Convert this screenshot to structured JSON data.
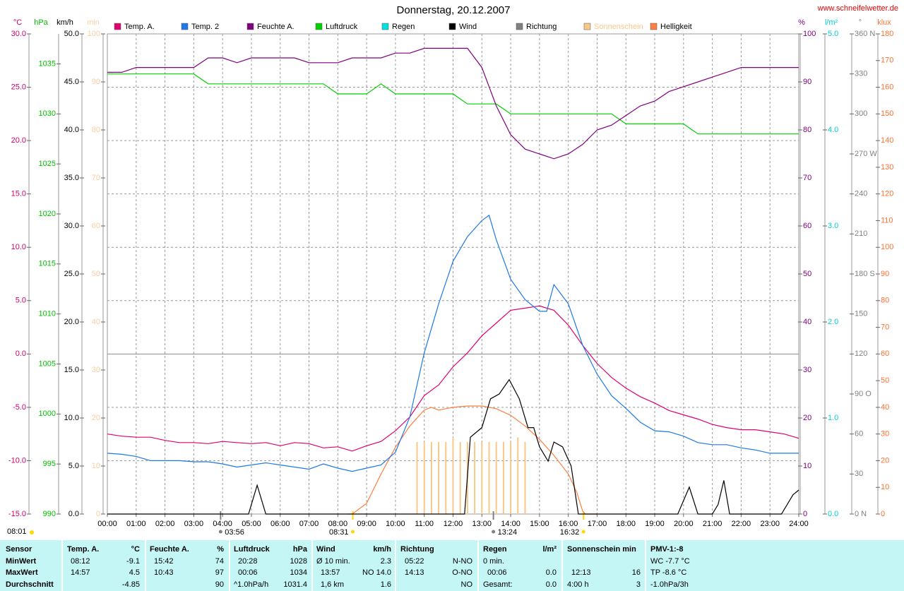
{
  "chart_data": {
    "type": "line",
    "title": "Donnerstag, 20.12.2007",
    "source": "www.schneifelwetter.de",
    "xlim": [
      0,
      24
    ],
    "xticks": [
      {
        "value": 0,
        "label": "00:00"
      },
      {
        "value": 1,
        "label": "01:00"
      },
      {
        "value": 2,
        "label": "02:00"
      },
      {
        "value": 3,
        "label": "03:00"
      },
      {
        "value": 4,
        "label": "04:00"
      },
      {
        "value": 5,
        "label": "05:00"
      },
      {
        "value": 6,
        "label": "06:00"
      },
      {
        "value": 7,
        "label": "07:00"
      },
      {
        "value": 8,
        "label": "08:00"
      },
      {
        "value": 9,
        "label": "09:00"
      },
      {
        "value": 10,
        "label": "10:00"
      },
      {
        "value": 11,
        "label": "11:00"
      },
      {
        "value": 12,
        "label": "12:00"
      },
      {
        "value": 13,
        "label": "13:00"
      },
      {
        "value": 14,
        "label": "14:00"
      },
      {
        "value": 15,
        "label": "15:00"
      },
      {
        "value": 16,
        "label": "16:00"
      },
      {
        "value": 17,
        "label": "17:00"
      },
      {
        "value": 18,
        "label": "18:00"
      },
      {
        "value": 19,
        "label": "19:00"
      },
      {
        "value": 20,
        "label": "20:00"
      },
      {
        "value": 21,
        "label": "21:00"
      },
      {
        "value": 22,
        "label": "22:00"
      },
      {
        "value": 23,
        "label": "23:00"
      },
      {
        "value": 24,
        "label": "24:00"
      }
    ],
    "grid": true,
    "axes": [
      {
        "label": "°C",
        "side": "left",
        "color": "#d0006f",
        "ylim": [
          -15,
          30
        ],
        "yticks": [
          {
            "value": 30,
            "label": "30.0"
          },
          {
            "value": 25,
            "label": "25.0"
          },
          {
            "value": 20,
            "label": "20.0"
          },
          {
            "value": 15,
            "label": "15.0"
          },
          {
            "value": 10,
            "label": "10.0"
          },
          {
            "value": 5,
            "label": "5.0"
          },
          {
            "value": 0,
            "label": "0.0"
          },
          {
            "value": -5,
            "label": "-5.0"
          },
          {
            "value": -10,
            "label": "-10.0"
          },
          {
            "value": -15,
            "label": "-15.0"
          }
        ]
      },
      {
        "label": "hPa",
        "side": "left",
        "color": "#00c000",
        "ylim": [
          990,
          1038
        ],
        "yticks": [
          990,
          995,
          1000,
          1005,
          1010,
          1015,
          1020,
          1025,
          1030,
          1035
        ]
      },
      {
        "label": "km/h",
        "side": "left",
        "color": "#000000",
        "ylim": [
          0,
          50
        ],
        "yticks": [
          {
            "value": 0,
            "label": "0.0"
          },
          {
            "value": 5,
            "label": "5.0"
          },
          {
            "value": 10,
            "label": "10.0"
          },
          {
            "value": 15,
            "label": "15.0"
          },
          {
            "value": 20,
            "label": "20.0"
          },
          {
            "value": 25,
            "label": "25.0"
          },
          {
            "value": 30,
            "label": "30.0"
          },
          {
            "value": 35,
            "label": "35.0"
          },
          {
            "value": 40,
            "label": "40.0"
          },
          {
            "value": 45,
            "label": "45.0"
          },
          {
            "value": 50,
            "label": "50.0"
          }
        ]
      },
      {
        "label": "min",
        "side": "left",
        "color": "#f8d0a0",
        "ylim": [
          0,
          100
        ],
        "yticks": [
          0,
          10,
          20,
          30,
          40,
          50,
          60,
          70,
          80,
          90,
          100
        ]
      },
      {
        "label": "%",
        "side": "right",
        "color": "#800080",
        "ylim": [
          0,
          100
        ],
        "yticks": [
          0,
          10,
          20,
          30,
          40,
          50,
          60,
          70,
          80,
          90,
          100
        ]
      },
      {
        "label": "l/m²",
        "side": "right",
        "color": "#00d0d0",
        "ylim": [
          0,
          5
        ],
        "yticks": [
          {
            "value": 0,
            "label": "0.0"
          },
          {
            "value": 1,
            "label": "1.0"
          },
          {
            "value": 2,
            "label": "2.0"
          },
          {
            "value": 3,
            "label": "3.0"
          },
          {
            "value": 4,
            "label": "4.0"
          },
          {
            "value": 5,
            "label": "5.0"
          }
        ]
      },
      {
        "label": "°",
        "side": "right",
        "color": "#808080",
        "ylim": [
          0,
          360
        ],
        "yticks": [
          {
            "value": 0,
            "label": "0 N"
          },
          30,
          60,
          {
            "value": 90,
            "label": "90 O"
          },
          120,
          150,
          {
            "value": 180,
            "label": "180 S"
          },
          210,
          240,
          {
            "value": 270,
            "label": "270 W"
          },
          300,
          330,
          {
            "value": 360,
            "label": "360 N"
          }
        ]
      },
      {
        "label": "klux",
        "side": "right",
        "color": "#ff7030",
        "ylim": [
          0,
          180
        ],
        "yticks": [
          0,
          10,
          20,
          30,
          40,
          50,
          60,
          70,
          80,
          90,
          100,
          110,
          120,
          130,
          140,
          150,
          160,
          170,
          180
        ]
      }
    ],
    "series": [
      {
        "name": "Temp. A.",
        "color": "#e0006f",
        "axis": "°C",
        "x": [
          0,
          0.5,
          1,
          1.5,
          2,
          2.5,
          3,
          3.5,
          4,
          4.5,
          5,
          5.5,
          6,
          6.5,
          7,
          7.5,
          8,
          8.5,
          9,
          9.5,
          10,
          10.5,
          11,
          11.5,
          12,
          12.5,
          13,
          13.5,
          14,
          14.5,
          15,
          15.5,
          16,
          16.5,
          17,
          17.5,
          18,
          18.5,
          19,
          19.5,
          20,
          20.5,
          21,
          21.5,
          22,
          22.5,
          23,
          23.5,
          24
        ],
        "values": [
          -7.5,
          -7.7,
          -7.8,
          -7.8,
          -8.1,
          -8.3,
          -8.3,
          -8.4,
          -8.2,
          -8.3,
          -8.4,
          -8.3,
          -8.6,
          -8.3,
          -8.4,
          -8.8,
          -8.7,
          -9.1,
          -8.6,
          -8.2,
          -7.2,
          -5.9,
          -3.9,
          -2.9,
          -1.2,
          0.1,
          1.7,
          2.9,
          4.1,
          4.3,
          4.5,
          4.1,
          2.7,
          0.8,
          -0.9,
          -2.2,
          -3.2,
          -4.0,
          -4.6,
          -5.3,
          -5.7,
          -6.1,
          -6.6,
          -6.9,
          -7.1,
          -7.1,
          -7.3,
          -7.5,
          -7.9
        ]
      },
      {
        "name": "Temp. 2",
        "color": "#1e78e6",
        "axis": "°C",
        "x": [
          0,
          0.5,
          1,
          1.5,
          2,
          2.5,
          3,
          3.5,
          4,
          4.5,
          5,
          5.5,
          6,
          6.5,
          7,
          7.5,
          8,
          8.5,
          9,
          9.5,
          10,
          10.5,
          11,
          11.5,
          12,
          12.5,
          13,
          13.25,
          13.5,
          14,
          14.5,
          15,
          15.25,
          15.5,
          16,
          16.5,
          17,
          17.5,
          18,
          18.5,
          19,
          19.5,
          20,
          20.5,
          21,
          21.5,
          22,
          22.5,
          23,
          23.5,
          24
        ],
        "values": [
          -9.3,
          -9.4,
          -9.6,
          -10.0,
          -10.0,
          -10.0,
          -10.1,
          -10.1,
          -10.3,
          -10.6,
          -10.4,
          -10.2,
          -10.4,
          -10.6,
          -10.8,
          -10.3,
          -10.7,
          -11.0,
          -10.7,
          -10.4,
          -9.2,
          -5.9,
          0.1,
          4.7,
          8.7,
          11.0,
          12.5,
          13.0,
          10.7,
          7.0,
          5.1,
          4.0,
          4.0,
          6.5,
          4.7,
          0.8,
          -1.9,
          -3.9,
          -5.1,
          -6.4,
          -7.2,
          -7.3,
          -7.7,
          -8.3,
          -8.5,
          -8.5,
          -8.8,
          -9.0,
          -9.3,
          -9.3,
          -9.3
        ]
      },
      {
        "name": "Feuchte A.",
        "color": "#800080",
        "axis": "%",
        "x": [
          0,
          0.5,
          1,
          1.5,
          2,
          2.5,
          3,
          3.5,
          4,
          4.5,
          5,
          5.5,
          6,
          6.5,
          7,
          7.5,
          8,
          8.5,
          9,
          9.5,
          10,
          10.5,
          11,
          11.5,
          12,
          12.5,
          13,
          13.5,
          14,
          14.5,
          15,
          15.5,
          16,
          16.5,
          17,
          17.5,
          18,
          18.5,
          19,
          19.5,
          20,
          20.5,
          21,
          21.5,
          22,
          22.5,
          23,
          23.5,
          24
        ],
        "values": [
          92,
          92,
          93,
          93,
          93,
          93,
          93,
          95,
          95,
          94,
          95,
          95,
          95,
          95,
          94,
          94,
          94,
          95,
          95,
          95,
          96,
          96,
          97,
          97,
          97,
          97,
          93,
          85,
          79,
          76,
          75,
          74,
          75,
          77,
          80,
          81,
          83,
          85,
          86,
          88,
          89,
          90,
          91,
          92,
          93,
          93,
          93,
          93,
          93
        ]
      },
      {
        "name": "Luftdruck",
        "color": "#00d000",
        "axis": "hPa",
        "x": [
          0,
          0.5,
          1,
          1.5,
          2,
          2.5,
          3,
          3.5,
          4,
          4.5,
          5,
          5.5,
          6,
          6.5,
          7,
          7.5,
          8,
          8.5,
          9,
          9.5,
          10,
          10.5,
          11,
          11.5,
          12,
          12.5,
          13,
          13.5,
          14,
          14.5,
          15,
          15.5,
          16,
          16.5,
          17,
          17.5,
          18,
          18.5,
          19,
          19.5,
          20,
          20.5,
          21,
          21.5,
          22,
          22.5,
          23,
          23.5,
          24
        ],
        "values": [
          1034,
          1034,
          1034,
          1034,
          1034,
          1034,
          1034,
          1033,
          1033,
          1033,
          1033,
          1033,
          1033,
          1033,
          1033,
          1033,
          1032,
          1032,
          1032,
          1033,
          1032,
          1032,
          1032,
          1032,
          1032,
          1031,
          1031,
          1031,
          1030,
          1030,
          1030,
          1030,
          1030,
          1030,
          1030,
          1030,
          1029,
          1029,
          1029,
          1029,
          1029,
          1028,
          1028,
          1028,
          1028,
          1028,
          1028,
          1028,
          1028
        ]
      },
      {
        "name": "Regen",
        "color": "#00e0e0",
        "axis": "l/m²"
      },
      {
        "name": "Wind",
        "color": "#000000",
        "axis": "km/h",
        "x": [
          0,
          4.9,
          5.2,
          5.5,
          12.4,
          12.6,
          13,
          13.3,
          13.6,
          13.95,
          14.3,
          14.6,
          14.8,
          15,
          15.3,
          15.5,
          15.8,
          16.1,
          16.35,
          16.6,
          19.8,
          20.2,
          20.5,
          20.8,
          21,
          21.2,
          21.4,
          21.6,
          23.4,
          23.8,
          24
        ],
        "values": [
          0,
          0,
          3.0,
          0,
          0,
          8.0,
          9.0,
          12.0,
          12.5,
          14.0,
          12.0,
          9.0,
          9.0,
          7.0,
          5.5,
          7.5,
          7.0,
          5.0,
          0,
          0,
          0,
          2.8,
          0,
          0,
          0,
          1.0,
          3.5,
          0,
          0,
          2.0,
          2.5
        ]
      },
      {
        "name": "Richtung",
        "color": "#808080",
        "axis": "°"
      },
      {
        "name": "Sonnenschein",
        "color": "#f8c888",
        "axis": "min",
        "type": "bar",
        "x": [
          10.75,
          11,
          11.25,
          11.5,
          11.75,
          12,
          12.25,
          12.5,
          12.75,
          13,
          13.25,
          13.5,
          13.75,
          14,
          14.25,
          14.5
        ],
        "values": [
          15,
          15,
          15,
          15,
          15,
          16,
          15,
          15,
          15,
          15,
          15,
          15,
          15,
          15,
          16,
          15
        ]
      },
      {
        "name": "Helligkeit",
        "color": "#ff7f3f",
        "axis": "klux",
        "x": [
          8.3,
          8.5,
          9,
          9.5,
          10,
          10.5,
          11,
          11.25,
          11.5,
          12,
          12.5,
          13,
          13.5,
          14,
          14.5,
          15,
          15.5,
          16,
          16.3,
          16.5,
          16.6,
          17
        ],
        "values": [
          0,
          0,
          4,
          15,
          25,
          33,
          39,
          40,
          39,
          40,
          40.5,
          40.5,
          39.5,
          37,
          33,
          28,
          22,
          15,
          8,
          1,
          0,
          0
        ]
      }
    ],
    "markers": [
      {
        "x": 3.93,
        "label": "03:56"
      },
      {
        "x": 8.52,
        "label": "08:31"
      },
      {
        "x": 13.4,
        "label": "13:24"
      },
      {
        "x": 16.53,
        "label": "16:32"
      }
    ],
    "footnote": "08:01"
  },
  "table": {
    "rows": [
      [
        "Sensor",
        "Temp. A.",
        "°C",
        "Feuchte A.",
        "%",
        "Luftdruck",
        "hPa",
        "Wind",
        "km/h",
        "Richtung",
        "Regen",
        "l/m²",
        "Sonnenschein min",
        "PMV-1:-8"
      ],
      [
        "MinWert",
        "08:12",
        "-9.1",
        "15:42",
        "74",
        "20:28",
        "1028",
        "Ø 10 min.",
        "2.3",
        "05:22",
        "N-NO",
        "0 min.",
        "WC -7.7 °C"
      ],
      [
        "MaxWert",
        "14:57",
        "4.5",
        "10:43",
        "97",
        "00:06",
        "1034",
        "13:57",
        "NO 14.0",
        "14:13",
        "O-NO",
        "00:06",
        "0.0",
        "12:13",
        "16",
        "TP -8.6 °C"
      ],
      [
        "Durchschnitt",
        "-4.85",
        "90",
        "^1.0hPa/h",
        "1031.4",
        "1,6 km",
        "1.6",
        "NO",
        "Gesamt:",
        "0.0",
        "4:00 h",
        "3",
        "-1.0hPa/3h"
      ]
    ]
  }
}
